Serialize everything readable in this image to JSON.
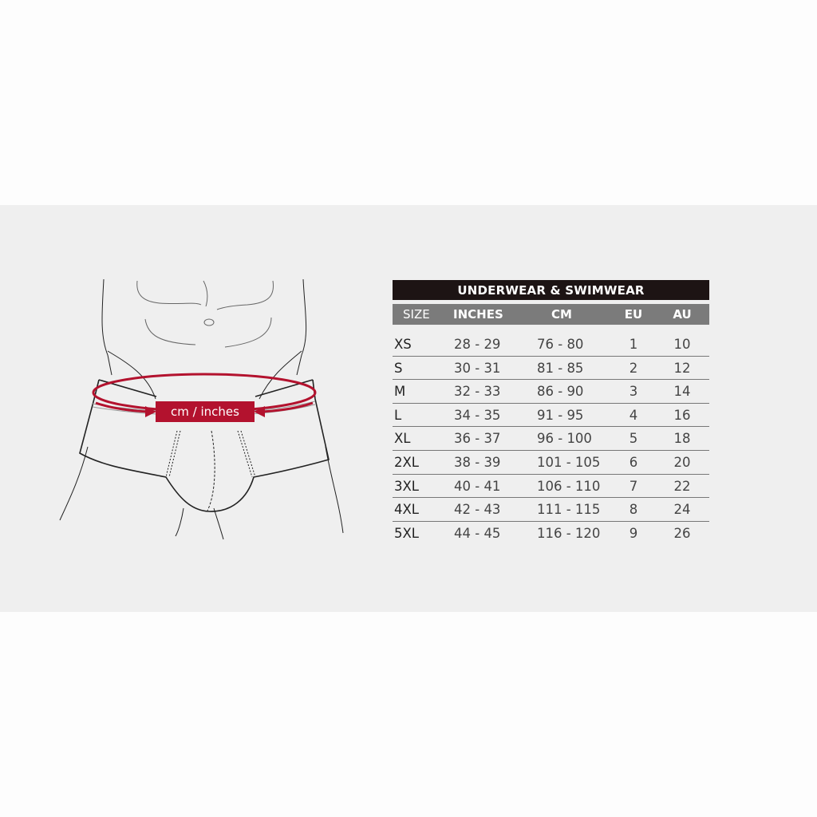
{
  "illustration": {
    "measure_label": "cm / inches",
    "accent_color": "#b3122e"
  },
  "table": {
    "title": "UNDERWEAR & SWIMWEAR",
    "headers": [
      "SIZE",
      "INCHES",
      "CM",
      "EU",
      "AU"
    ],
    "rows": [
      [
        "XS",
        "28 - 29",
        "76 - 80",
        "1",
        "10"
      ],
      [
        "S",
        "30 - 31",
        "81 - 85",
        "2",
        "12"
      ],
      [
        "M",
        "32 - 33",
        "86 - 90",
        "3",
        "14"
      ],
      [
        "L",
        "34 - 35",
        "91 - 95",
        "4",
        "16"
      ],
      [
        "XL",
        "36 - 37",
        "96 - 100",
        "5",
        "18"
      ],
      [
        "2XL",
        "38 - 39",
        "101 - 105",
        "6",
        "20"
      ],
      [
        "3XL",
        "40 - 41",
        "106 - 110",
        "7",
        "22"
      ],
      [
        "4XL",
        "42 - 43",
        "111 - 115",
        "8",
        "24"
      ],
      [
        "5XL",
        "44 - 45",
        "116 - 120",
        "9",
        "26"
      ]
    ],
    "title_bg": "#1d1414",
    "header_bg": "#7b7b7b"
  }
}
